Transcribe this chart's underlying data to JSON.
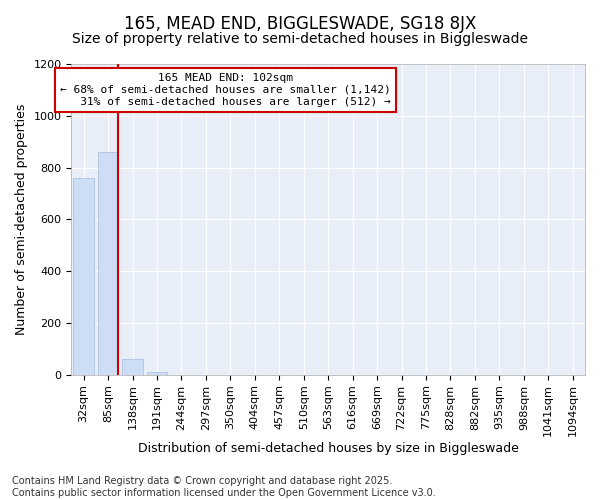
{
  "title1": "165, MEAD END, BIGGLESWADE, SG18 8JX",
  "title2": "Size of property relative to semi-detached houses in Biggleswade",
  "xlabel": "Distribution of semi-detached houses by size in Biggleswade",
  "ylabel": "Number of semi-detached properties",
  "categories": [
    "32sqm",
    "85sqm",
    "138sqm",
    "191sqm",
    "244sqm",
    "297sqm",
    "350sqm",
    "404sqm",
    "457sqm",
    "510sqm",
    "563sqm",
    "616sqm",
    "669sqm",
    "722sqm",
    "775sqm",
    "828sqm",
    "882sqm",
    "935sqm",
    "988sqm",
    "1041sqm",
    "1094sqm"
  ],
  "values": [
    760,
    860,
    60,
    10,
    0,
    0,
    0,
    0,
    0,
    0,
    0,
    0,
    0,
    0,
    0,
    0,
    0,
    0,
    0,
    0,
    0
  ],
  "bar_color": "#ccddf5",
  "bar_edge_color": "#aabbd8",
  "vline_x_index": 1,
  "vline_color": "#cc0000",
  "annotation_line1": "165 MEAD END: 102sqm",
  "annotation_line2": "← 68% of semi-detached houses are smaller (1,142)",
  "annotation_line3": "   31% of semi-detached houses are larger (512) →",
  "annotation_box_edgecolor": "#cc0000",
  "ylim": [
    0,
    1200
  ],
  "yticks": [
    0,
    200,
    400,
    600,
    800,
    1000,
    1200
  ],
  "footnote": "Contains HM Land Registry data © Crown copyright and database right 2025.\nContains public sector information licensed under the Open Government Licence v3.0.",
  "fig_bg_color": "#ffffff",
  "plot_bg_color": "#e8eef8",
  "grid_color": "#ffffff",
  "title1_fontsize": 12,
  "title2_fontsize": 10,
  "axis_label_fontsize": 9,
  "tick_fontsize": 8,
  "annotation_fontsize": 8,
  "footnote_fontsize": 7
}
